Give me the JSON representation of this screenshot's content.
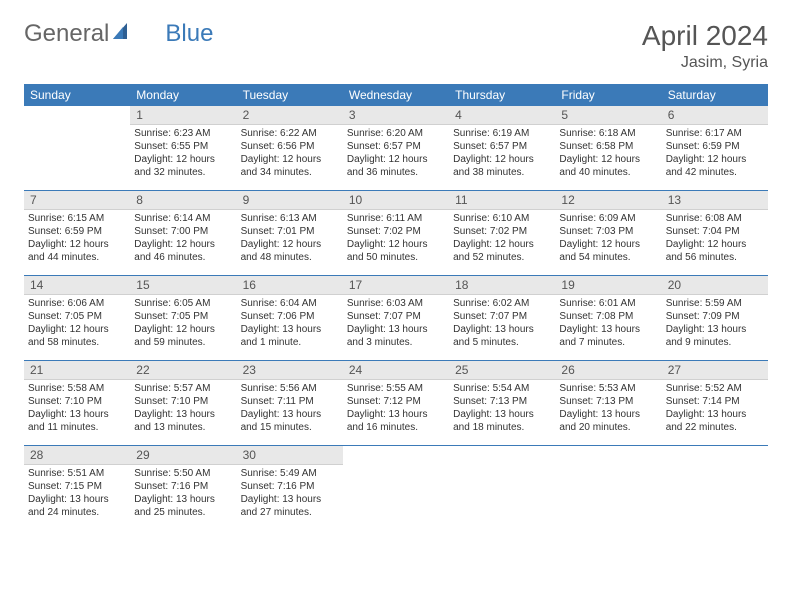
{
  "brand": {
    "part1": "General",
    "part2": "Blue"
  },
  "title": "April 2024",
  "location": "Jasim, Syria",
  "colors": {
    "header_bg": "#3b7ab8",
    "header_fg": "#ffffff",
    "daynum_bg": "#e8e8e8",
    "divider": "#3b7ab8",
    "text": "#333333",
    "brand_gray": "#666666"
  },
  "day_headers": [
    "Sunday",
    "Monday",
    "Tuesday",
    "Wednesday",
    "Thursday",
    "Friday",
    "Saturday"
  ],
  "weeks": [
    [
      null,
      {
        "n": "1",
        "sr": "6:23 AM",
        "ss": "6:55 PM",
        "d1": "12 hours",
        "d2": "and 32 minutes."
      },
      {
        "n": "2",
        "sr": "6:22 AM",
        "ss": "6:56 PM",
        "d1": "12 hours",
        "d2": "and 34 minutes."
      },
      {
        "n": "3",
        "sr": "6:20 AM",
        "ss": "6:57 PM",
        "d1": "12 hours",
        "d2": "and 36 minutes."
      },
      {
        "n": "4",
        "sr": "6:19 AM",
        "ss": "6:57 PM",
        "d1": "12 hours",
        "d2": "and 38 minutes."
      },
      {
        "n": "5",
        "sr": "6:18 AM",
        "ss": "6:58 PM",
        "d1": "12 hours",
        "d2": "and 40 minutes."
      },
      {
        "n": "6",
        "sr": "6:17 AM",
        "ss": "6:59 PM",
        "d1": "12 hours",
        "d2": "and 42 minutes."
      }
    ],
    [
      {
        "n": "7",
        "sr": "6:15 AM",
        "ss": "6:59 PM",
        "d1": "12 hours",
        "d2": "and 44 minutes."
      },
      {
        "n": "8",
        "sr": "6:14 AM",
        "ss": "7:00 PM",
        "d1": "12 hours",
        "d2": "and 46 minutes."
      },
      {
        "n": "9",
        "sr": "6:13 AM",
        "ss": "7:01 PM",
        "d1": "12 hours",
        "d2": "and 48 minutes."
      },
      {
        "n": "10",
        "sr": "6:11 AM",
        "ss": "7:02 PM",
        "d1": "12 hours",
        "d2": "and 50 minutes."
      },
      {
        "n": "11",
        "sr": "6:10 AM",
        "ss": "7:02 PM",
        "d1": "12 hours",
        "d2": "and 52 minutes."
      },
      {
        "n": "12",
        "sr": "6:09 AM",
        "ss": "7:03 PM",
        "d1": "12 hours",
        "d2": "and 54 minutes."
      },
      {
        "n": "13",
        "sr": "6:08 AM",
        "ss": "7:04 PM",
        "d1": "12 hours",
        "d2": "and 56 minutes."
      }
    ],
    [
      {
        "n": "14",
        "sr": "6:06 AM",
        "ss": "7:05 PM",
        "d1": "12 hours",
        "d2": "and 58 minutes."
      },
      {
        "n": "15",
        "sr": "6:05 AM",
        "ss": "7:05 PM",
        "d1": "12 hours",
        "d2": "and 59 minutes."
      },
      {
        "n": "16",
        "sr": "6:04 AM",
        "ss": "7:06 PM",
        "d1": "13 hours",
        "d2": "and 1 minute."
      },
      {
        "n": "17",
        "sr": "6:03 AM",
        "ss": "7:07 PM",
        "d1": "13 hours",
        "d2": "and 3 minutes."
      },
      {
        "n": "18",
        "sr": "6:02 AM",
        "ss": "7:07 PM",
        "d1": "13 hours",
        "d2": "and 5 minutes."
      },
      {
        "n": "19",
        "sr": "6:01 AM",
        "ss": "7:08 PM",
        "d1": "13 hours",
        "d2": "and 7 minutes."
      },
      {
        "n": "20",
        "sr": "5:59 AM",
        "ss": "7:09 PM",
        "d1": "13 hours",
        "d2": "and 9 minutes."
      }
    ],
    [
      {
        "n": "21",
        "sr": "5:58 AM",
        "ss": "7:10 PM",
        "d1": "13 hours",
        "d2": "and 11 minutes."
      },
      {
        "n": "22",
        "sr": "5:57 AM",
        "ss": "7:10 PM",
        "d1": "13 hours",
        "d2": "and 13 minutes."
      },
      {
        "n": "23",
        "sr": "5:56 AM",
        "ss": "7:11 PM",
        "d1": "13 hours",
        "d2": "and 15 minutes."
      },
      {
        "n": "24",
        "sr": "5:55 AM",
        "ss": "7:12 PM",
        "d1": "13 hours",
        "d2": "and 16 minutes."
      },
      {
        "n": "25",
        "sr": "5:54 AM",
        "ss": "7:13 PM",
        "d1": "13 hours",
        "d2": "and 18 minutes."
      },
      {
        "n": "26",
        "sr": "5:53 AM",
        "ss": "7:13 PM",
        "d1": "13 hours",
        "d2": "and 20 minutes."
      },
      {
        "n": "27",
        "sr": "5:52 AM",
        "ss": "7:14 PM",
        "d1": "13 hours",
        "d2": "and 22 minutes."
      }
    ],
    [
      {
        "n": "28",
        "sr": "5:51 AM",
        "ss": "7:15 PM",
        "d1": "13 hours",
        "d2": "and 24 minutes."
      },
      {
        "n": "29",
        "sr": "5:50 AM",
        "ss": "7:16 PM",
        "d1": "13 hours",
        "d2": "and 25 minutes."
      },
      {
        "n": "30",
        "sr": "5:49 AM",
        "ss": "7:16 PM",
        "d1": "13 hours",
        "d2": "and 27 minutes."
      },
      null,
      null,
      null,
      null
    ]
  ],
  "labels": {
    "sunrise": "Sunrise: ",
    "sunset": "Sunset: ",
    "daylight": "Daylight: "
  }
}
